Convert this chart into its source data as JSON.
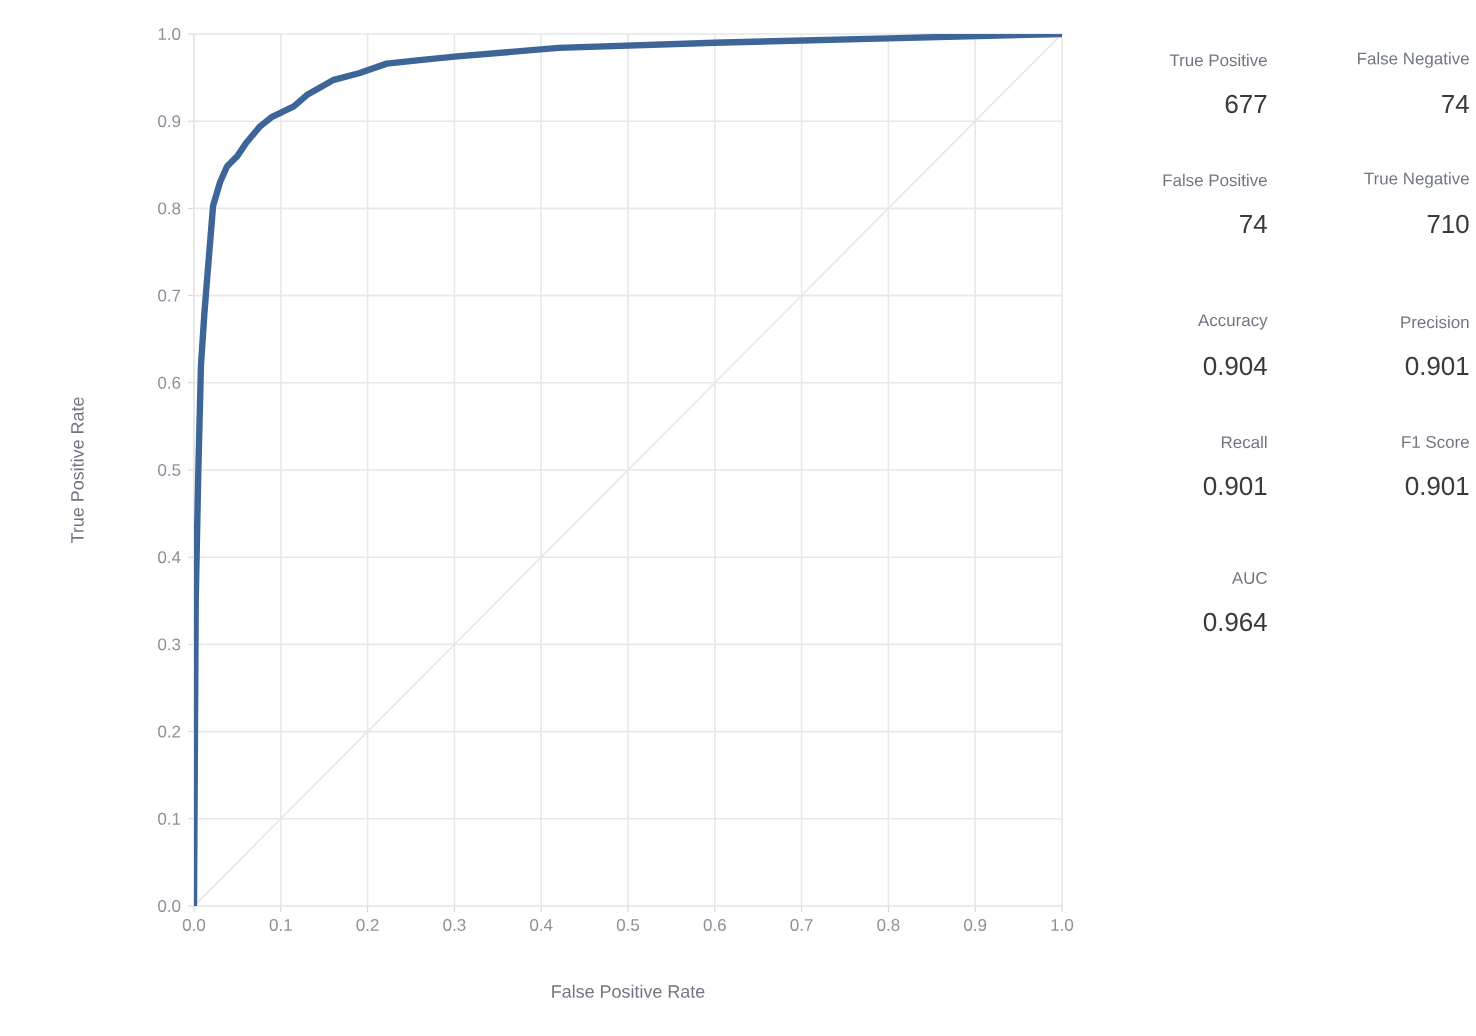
{
  "chart_data": [
    {
      "type": "line",
      "xlabel": "False Positive Rate",
      "ylabel": "True Positive Rate",
      "xlim": [
        0,
        1
      ],
      "ylim": [
        0,
        1
      ],
      "grid": true,
      "marker": "none",
      "xticks": [
        {
          "value": 0,
          "label": "0.0"
        },
        0.1,
        0.2,
        0.3,
        0.4,
        0.5,
        0.6,
        0.7,
        0.8,
        0.9,
        {
          "value": 1,
          "label": "1.0"
        }
      ],
      "yticks": [
        {
          "value": 0,
          "label": "0.0"
        },
        0.1,
        0.2,
        0.3,
        0.4,
        0.5,
        0.6,
        0.7,
        0.8,
        0.9,
        {
          "value": 1,
          "label": "1.0"
        }
      ],
      "series": [
        {
          "color": "#e6e6e6",
          "x": [
            0,
            1
          ],
          "values": [
            0,
            1
          ]
        },
        {
          "color": "#3e6598",
          "x": [
            0,
            0.002,
            0.005,
            0.008,
            0.012,
            0.015,
            0.022,
            0.03,
            0.038,
            0.05,
            0.06,
            0.076,
            0.09,
            0.115,
            0.13,
            0.16,
            0.19,
            0.222,
            0.26,
            0.3,
            0.42,
            0.6,
            0.8,
            1
          ],
          "values": [
            0,
            0.35,
            0.5,
            0.62,
            0.68,
            0.718,
            0.803,
            0.83,
            0.848,
            0.86,
            0.875,
            0.894,
            0.905,
            0.917,
            0.93,
            0.947,
            0.955,
            0.966,
            0.97,
            0.974,
            0.984,
            0.99,
            0.995,
            1
          ]
        }
      ]
    },
    {
      "type": "other",
      "annotations": [
        "True Positive",
        "677",
        "False Negative",
        "74",
        "False Positive",
        "74",
        "True Negative",
        "710",
        "Accuracy",
        "0.904",
        "Precision",
        "0.901",
        "Recall",
        "0.901",
        "F1 Score",
        "0.901",
        "AUC",
        "0.964"
      ]
    }
  ]
}
